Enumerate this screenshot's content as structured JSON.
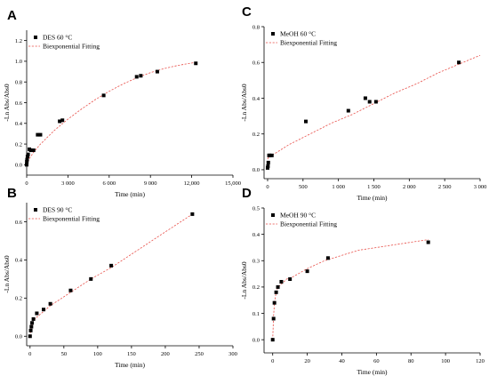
{
  "chart_data": [
    {
      "id": "A",
      "type": "scatter",
      "panel_letter": "A",
      "xlabel": "Time (min)",
      "ylabel": "-Ln Abs/Abs0",
      "xlim": [
        0,
        15000
      ],
      "ylim": [
        -0.1,
        1.3
      ],
      "xticks": [
        0,
        3000,
        6000,
        9000,
        12000,
        15000
      ],
      "xtick_labels": [
        "0",
        "3 000",
        "6 000",
        "9 000",
        "12,000",
        "15,000"
      ],
      "yticks": [
        0.0,
        0.2,
        0.4,
        0.6,
        0.8,
        1.0,
        1.2
      ],
      "ytick_labels": [
        "0.0",
        "0.2",
        "0.4",
        "0.6",
        "0.8",
        "1.0",
        "1.2"
      ],
      "legend": {
        "position": "top-left",
        "marker_label": "DES 60 °C",
        "line_label": "Biexponential Fitting"
      },
      "series": [
        {
          "name": "DES 60 °C",
          "x": [
            0,
            10,
            30,
            60,
            100,
            200,
            300,
            500,
            800,
            1000,
            2400,
            2600,
            5600,
            8000,
            8300,
            9500,
            12300
          ],
          "y": [
            0.0,
            0.03,
            0.05,
            0.08,
            0.1,
            0.15,
            0.14,
            0.14,
            0.29,
            0.29,
            0.42,
            0.43,
            0.67,
            0.85,
            0.86,
            0.9,
            0.98
          ]
        },
        {
          "name": "Biexponential Fitting",
          "x": [
            0,
            200,
            500,
            1000,
            2000,
            3000,
            4000,
            5000,
            6000,
            7000,
            8000,
            9000,
            10000,
            11000,
            12300
          ],
          "y": [
            0.0,
            0.06,
            0.12,
            0.2,
            0.33,
            0.44,
            0.54,
            0.63,
            0.71,
            0.78,
            0.84,
            0.89,
            0.93,
            0.96,
            0.99
          ]
        }
      ]
    },
    {
      "id": "B",
      "type": "scatter",
      "panel_letter": "B",
      "xlabel": "Time (min)",
      "ylabel": "-Ln Abs/Abs0",
      "xlim": [
        -5,
        300
      ],
      "ylim": [
        -0.05,
        0.7
      ],
      "xticks": [
        0,
        50,
        100,
        150,
        200,
        250,
        300
      ],
      "xtick_labels": [
        "0",
        "50",
        "100",
        "150",
        "200",
        "250",
        "300"
      ],
      "yticks": [
        0.0,
        0.2,
        0.4,
        0.6
      ],
      "ytick_labels": [
        "0.0",
        "0.2",
        "0.4",
        "0.6"
      ],
      "legend": {
        "position": "top-left",
        "marker_label": "DES 90 °C",
        "line_label": "Biexponential Fitting"
      },
      "series": [
        {
          "name": "DES 90 °C",
          "x": [
            0,
            1,
            2,
            3,
            5,
            10,
            20,
            30,
            60,
            90,
            120,
            240
          ],
          "y": [
            0.0,
            0.03,
            0.05,
            0.07,
            0.09,
            0.12,
            0.14,
            0.17,
            0.24,
            0.3,
            0.37,
            0.64
          ]
        },
        {
          "name": "Biexponential Fitting",
          "x": [
            0,
            2,
            5,
            10,
            20,
            30,
            60,
            90,
            120,
            150,
            180,
            210,
            240
          ],
          "y": [
            0.0,
            0.05,
            0.08,
            0.1,
            0.13,
            0.16,
            0.23,
            0.3,
            0.36,
            0.43,
            0.5,
            0.57,
            0.64
          ]
        }
      ]
    },
    {
      "id": "C",
      "type": "scatter",
      "panel_letter": "C",
      "xlabel": "Time (min)",
      "ylabel": "-Ln Abs/Abs0",
      "xlim": [
        -50,
        3000
      ],
      "ylim": [
        -0.05,
        0.8
      ],
      "xticks": [
        0,
        500,
        1000,
        1500,
        2000,
        2500,
        3000
      ],
      "xtick_labels": [
        "0",
        "500",
        "1 000",
        "1 500",
        "2 000",
        "2 500",
        "3 000"
      ],
      "yticks": [
        0.0,
        0.2,
        0.4,
        0.6,
        0.8
      ],
      "ytick_labels": [
        "0.0",
        "0.2",
        "0.4",
        "0.6",
        "0.8"
      ],
      "legend": {
        "position": "top-left",
        "marker_label": "MeOH 60 °C",
        "line_label": "Biexponential Fitting"
      },
      "series": [
        {
          "name": "MeOH 60 °C",
          "x": [
            0,
            5,
            10,
            20,
            30,
            60,
            540,
            1140,
            1380,
            1440,
            1530,
            2700
          ],
          "y": [
            0.01,
            0.02,
            0.04,
            0.08,
            0.08,
            0.08,
            0.27,
            0.33,
            0.4,
            0.38,
            0.38,
            0.6
          ]
        },
        {
          "name": "Biexponential Fitting",
          "x": [
            0,
            30,
            100,
            300,
            600,
            900,
            1200,
            1500,
            1800,
            2100,
            2400,
            2700,
            3000
          ],
          "y": [
            0.06,
            0.08,
            0.09,
            0.14,
            0.2,
            0.26,
            0.31,
            0.37,
            0.43,
            0.48,
            0.54,
            0.59,
            0.64
          ]
        }
      ]
    },
    {
      "id": "D",
      "type": "scatter",
      "panel_letter": "D",
      "xlabel": "Time (min)",
      "ylabel": "-Ln Abs/Abs0",
      "xlim": [
        -5,
        120
      ],
      "ylim": [
        -0.05,
        0.5
      ],
      "xticks": [
        0,
        20,
        40,
        60,
        80,
        100,
        120
      ],
      "xtick_labels": [
        "0",
        "20",
        "40",
        "60",
        "80",
        "100",
        "120"
      ],
      "yticks": [
        0.0,
        0.1,
        0.2,
        0.3,
        0.4,
        0.5
      ],
      "ytick_labels": [
        "0.0",
        "0.1",
        "0.2",
        "0.3",
        "0.4",
        "0.5"
      ],
      "legend": {
        "position": "top-left",
        "marker_label": "MeOH 90 °C",
        "line_label": "Biexponential Fitting"
      },
      "series": [
        {
          "name": "MeOH 90 °C",
          "x": [
            0,
            0.5,
            1,
            2,
            3,
            5,
            10,
            20,
            32,
            90
          ],
          "y": [
            0.0,
            0.08,
            0.14,
            0.18,
            0.2,
            0.22,
            0.23,
            0.26,
            0.31,
            0.37
          ]
        },
        {
          "name": "Biexponential Fitting",
          "x": [
            0,
            0.5,
            1,
            2,
            3,
            5,
            8,
            12,
            20,
            30,
            40,
            50,
            60,
            70,
            80,
            90
          ],
          "y": [
            0.0,
            0.09,
            0.14,
            0.18,
            0.2,
            0.21,
            0.23,
            0.24,
            0.27,
            0.3,
            0.32,
            0.34,
            0.35,
            0.36,
            0.37,
            0.38
          ]
        }
      ]
    }
  ]
}
